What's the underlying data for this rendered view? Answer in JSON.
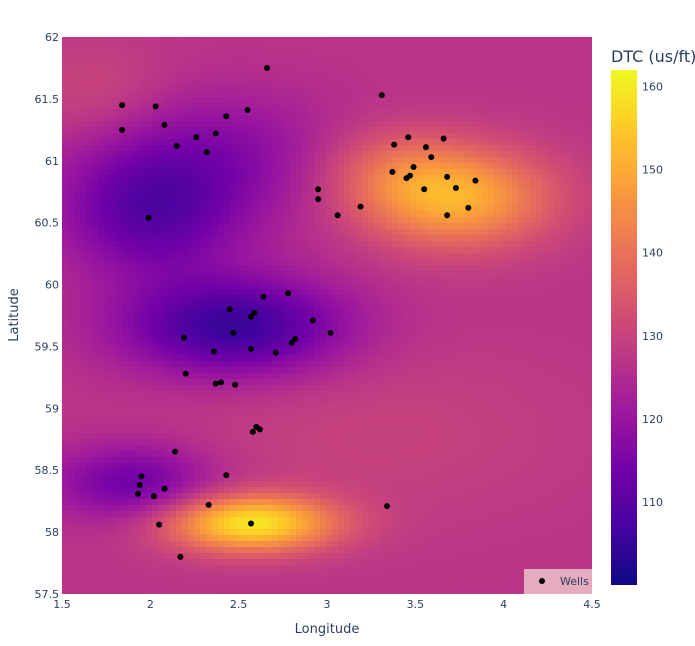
{
  "chart_data": {
    "type": "heatmap",
    "xlabel": "Longitude",
    "ylabel": "Latitude",
    "xlim": [
      1.5,
      4.5
    ],
    "ylim": [
      57.5,
      62
    ],
    "x_ticks": [
      {
        "v": 1.5,
        "label": "1.5"
      },
      {
        "v": 2,
        "label": "2"
      },
      {
        "v": 2.5,
        "label": "2.5"
      },
      {
        "v": 3,
        "label": "3"
      },
      {
        "v": 3.5,
        "label": "3.5"
      },
      {
        "v": 4,
        "label": "4"
      },
      {
        "v": 4.5,
        "label": "4.5"
      }
    ],
    "y_ticks": [
      {
        "v": 57.5,
        "label": "57.5"
      },
      {
        "v": 58,
        "label": "58"
      },
      {
        "v": 58.5,
        "label": "58.5"
      },
      {
        "v": 59,
        "label": "59"
      },
      {
        "v": 59.5,
        "label": "59.5"
      },
      {
        "v": 60,
        "label": "60"
      },
      {
        "v": 60.5,
        "label": "60.5"
      },
      {
        "v": 61,
        "label": "61"
      },
      {
        "v": 61.5,
        "label": "61.5"
      },
      {
        "v": 62,
        "label": "62"
      }
    ],
    "colorbar": {
      "title": "DTC (us/ft)",
      "range": [
        100,
        162
      ],
      "ticks": [
        {
          "v": 110,
          "label": "110"
        },
        {
          "v": 120,
          "label": "120"
        },
        {
          "v": 130,
          "label": "130"
        },
        {
          "v": 140,
          "label": "140"
        },
        {
          "v": 150,
          "label": "150"
        },
        {
          "v": 160,
          "label": "160"
        }
      ],
      "colorscale": [
        "#0d0887",
        "#46039f",
        "#7201a8",
        "#9c179e",
        "#bd3786",
        "#d8576b",
        "#ed7953",
        "#fb9f3a",
        "#fdca26",
        "#f0f921"
      ]
    },
    "field": {
      "base": 127,
      "features": [
        {
          "x": 2.57,
          "y": 58.07,
          "amp": 32,
          "sx": 0.33,
          "sy": 0.16
        },
        {
          "x": 3.72,
          "y": 60.7,
          "amp": 24,
          "sx": 0.38,
          "sy": 0.28
        },
        {
          "x": 3.35,
          "y": 60.95,
          "amp": 8,
          "sx": 0.3,
          "sy": 0.25
        },
        {
          "x": 2.47,
          "y": 59.66,
          "amp": -22,
          "sx": 0.45,
          "sy": 0.28
        },
        {
          "x": 2.0,
          "y": 60.55,
          "amp": -15,
          "sx": 0.35,
          "sy": 0.35
        },
        {
          "x": 1.9,
          "y": 58.4,
          "amp": -14,
          "sx": 0.32,
          "sy": 0.22
        },
        {
          "x": 2.2,
          "y": 61.1,
          "amp": -7,
          "sx": 0.5,
          "sy": 0.35
        },
        {
          "x": 2.6,
          "y": 60.9,
          "amp": -4,
          "sx": 0.6,
          "sy": 0.4
        },
        {
          "x": 1.7,
          "y": 61.5,
          "amp": 5,
          "sx": 0.3,
          "sy": 0.3
        },
        {
          "x": 3.3,
          "y": 58.8,
          "amp": 3,
          "sx": 0.8,
          "sy": 0.5
        }
      ]
    },
    "series": [
      {
        "name": "Wells",
        "marker_color": "#000000",
        "points": [
          [
            2.66,
            61.75
          ],
          [
            3.31,
            61.53
          ],
          [
            1.84,
            61.45
          ],
          [
            2.03,
            61.44
          ],
          [
            2.55,
            61.41
          ],
          [
            2.43,
            61.36
          ],
          [
            2.08,
            61.29
          ],
          [
            1.84,
            61.25
          ],
          [
            2.37,
            61.22
          ],
          [
            2.26,
            61.19
          ],
          [
            3.46,
            61.19
          ],
          [
            3.66,
            61.18
          ],
          [
            2.15,
            61.12
          ],
          [
            3.38,
            61.13
          ],
          [
            3.56,
            61.11
          ],
          [
            2.32,
            61.07
          ],
          [
            3.59,
            61.03
          ],
          [
            3.49,
            60.95
          ],
          [
            3.37,
            60.91
          ],
          [
            3.47,
            60.88
          ],
          [
            3.68,
            60.87
          ],
          [
            3.45,
            60.86
          ],
          [
            3.84,
            60.84
          ],
          [
            3.73,
            60.78
          ],
          [
            3.55,
            60.77
          ],
          [
            2.95,
            60.77
          ],
          [
            2.95,
            60.69
          ],
          [
            3.19,
            60.63
          ],
          [
            3.8,
            60.62
          ],
          [
            3.06,
            60.56
          ],
          [
            3.68,
            60.56
          ],
          [
            1.99,
            60.54
          ],
          [
            2.78,
            59.93
          ],
          [
            2.64,
            59.9
          ],
          [
            2.45,
            59.8
          ],
          [
            2.59,
            59.77
          ],
          [
            2.57,
            59.74
          ],
          [
            2.92,
            59.71
          ],
          [
            3.02,
            59.61
          ],
          [
            2.47,
            59.61
          ],
          [
            2.19,
            59.57
          ],
          [
            2.82,
            59.56
          ],
          [
            2.8,
            59.53
          ],
          [
            2.57,
            59.48
          ],
          [
            2.36,
            59.46
          ],
          [
            2.71,
            59.45
          ],
          [
            2.2,
            59.28
          ],
          [
            2.4,
            59.21
          ],
          [
            2.37,
            59.2
          ],
          [
            2.48,
            59.19
          ],
          [
            2.6,
            58.85
          ],
          [
            2.62,
            58.83
          ],
          [
            2.58,
            58.81
          ],
          [
            2.14,
            58.65
          ],
          [
            1.95,
            58.45
          ],
          [
            2.43,
            58.46
          ],
          [
            1.94,
            58.38
          ],
          [
            2.08,
            58.35
          ],
          [
            1.93,
            58.31
          ],
          [
            2.02,
            58.29
          ],
          [
            3.34,
            58.21
          ],
          [
            2.33,
            58.22
          ],
          [
            2.57,
            58.07
          ],
          [
            2.05,
            58.06
          ],
          [
            2.17,
            57.8
          ]
        ]
      }
    ],
    "legend": {
      "placement": "bottom-right",
      "label": "Wells",
      "bg": "#e5acc0"
    }
  }
}
